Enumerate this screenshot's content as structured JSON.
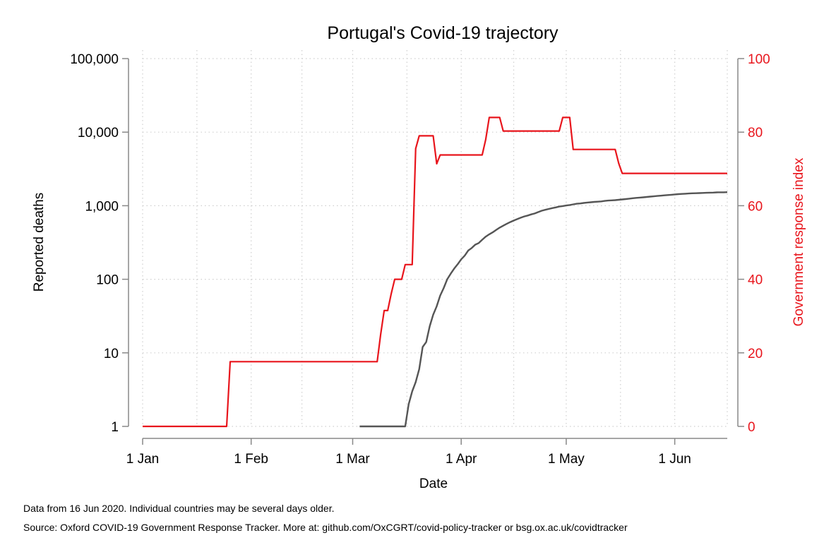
{
  "chart_data": {
    "type": "line",
    "title": "Portugal's Covid-19 trajectory",
    "xlabel": "Date",
    "ylabel": "Reported deaths",
    "ylabel_right": "Government response index",
    "x_range": [
      "2020-01-01",
      "2020-06-16"
    ],
    "x_ticks": [
      {
        "date": "2020-01-01",
        "label": "1 Jan"
      },
      {
        "date": "2020-02-01",
        "label": "1 Feb"
      },
      {
        "date": "2020-03-01",
        "label": "1 Mar"
      },
      {
        "date": "2020-04-01",
        "label": "1 Apr"
      },
      {
        "date": "2020-05-01",
        "label": "1 May"
      },
      {
        "date": "2020-06-01",
        "label": "1 Jun"
      }
    ],
    "y_left": {
      "scale": "log",
      "range": [
        1,
        100000
      ],
      "ticks": [
        {
          "value": 1,
          "label": "1"
        },
        {
          "value": 10,
          "label": "10"
        },
        {
          "value": 100,
          "label": "100"
        },
        {
          "value": 1000,
          "label": "1,000"
        },
        {
          "value": 10000,
          "label": "10,000"
        },
        {
          "value": 100000,
          "label": "100,000"
        }
      ]
    },
    "y_right": {
      "scale": "linear",
      "range": [
        0,
        100
      ],
      "ticks": [
        {
          "value": 0,
          "label": "0"
        },
        {
          "value": 20,
          "label": "20"
        },
        {
          "value": 40,
          "label": "40"
        },
        {
          "value": 60,
          "label": "60"
        },
        {
          "value": 80,
          "label": "80"
        },
        {
          "value": 100,
          "label": "100"
        }
      ]
    },
    "grid": true,
    "series": [
      {
        "axis": "right",
        "color": "#e8151c",
        "points": [
          [
            "2020-01-01",
            0
          ],
          [
            "2020-01-25",
            0
          ],
          [
            "2020-01-26",
            17.6
          ],
          [
            "2020-03-08",
            17.6
          ],
          [
            "2020-03-09",
            25
          ],
          [
            "2020-03-10",
            31.5
          ],
          [
            "2020-03-11",
            31.5
          ],
          [
            "2020-03-12",
            36
          ],
          [
            "2020-03-13",
            40
          ],
          [
            "2020-03-15",
            40
          ],
          [
            "2020-03-16",
            44
          ],
          [
            "2020-03-18",
            44
          ],
          [
            "2020-03-19",
            75.5
          ],
          [
            "2020-03-20",
            79
          ],
          [
            "2020-03-24",
            79
          ],
          [
            "2020-03-25",
            71.4
          ],
          [
            "2020-03-26",
            73.8
          ],
          [
            "2020-04-07",
            73.8
          ],
          [
            "2020-04-08",
            78
          ],
          [
            "2020-04-09",
            84
          ],
          [
            "2020-04-12",
            84
          ],
          [
            "2020-04-13",
            80.3
          ],
          [
            "2020-04-29",
            80.3
          ],
          [
            "2020-04-30",
            84
          ],
          [
            "2020-05-02",
            84
          ],
          [
            "2020-05-03",
            75.3
          ],
          [
            "2020-05-15",
            75.3
          ],
          [
            "2020-05-16",
            71.5
          ],
          [
            "2020-05-17",
            68.8
          ],
          [
            "2020-06-16",
            68.8
          ]
        ]
      },
      {
        "axis": "left",
        "color": "#555555",
        "points": [
          [
            "2020-03-03",
            1
          ],
          [
            "2020-03-16",
            1
          ],
          [
            "2020-03-17",
            2
          ],
          [
            "2020-03-18",
            3
          ],
          [
            "2020-03-19",
            4
          ],
          [
            "2020-03-20",
            6
          ],
          [
            "2020-03-21",
            12
          ],
          [
            "2020-03-22",
            14
          ],
          [
            "2020-03-23",
            23
          ],
          [
            "2020-03-24",
            33
          ],
          [
            "2020-03-25",
            43
          ],
          [
            "2020-03-26",
            60
          ],
          [
            "2020-03-27",
            76
          ],
          [
            "2020-03-28",
            100
          ],
          [
            "2020-03-29",
            119
          ],
          [
            "2020-03-30",
            140
          ],
          [
            "2020-03-31",
            160
          ],
          [
            "2020-04-01",
            187
          ],
          [
            "2020-04-02",
            209
          ],
          [
            "2020-04-03",
            246
          ],
          [
            "2020-04-04",
            266
          ],
          [
            "2020-04-05",
            295
          ],
          [
            "2020-04-06",
            311
          ],
          [
            "2020-04-07",
            345
          ],
          [
            "2020-04-08",
            380
          ],
          [
            "2020-04-09",
            409
          ],
          [
            "2020-04-10",
            435
          ],
          [
            "2020-04-11",
            470
          ],
          [
            "2020-04-12",
            504
          ],
          [
            "2020-04-13",
            535
          ],
          [
            "2020-04-14",
            567
          ],
          [
            "2020-04-15",
            599
          ],
          [
            "2020-04-16",
            629
          ],
          [
            "2020-04-17",
            657
          ],
          [
            "2020-04-18",
            687
          ],
          [
            "2020-04-19",
            714
          ],
          [
            "2020-04-20",
            735
          ],
          [
            "2020-04-21",
            762
          ],
          [
            "2020-04-22",
            785
          ],
          [
            "2020-04-23",
            820
          ],
          [
            "2020-04-24",
            854
          ],
          [
            "2020-04-25",
            880
          ],
          [
            "2020-04-26",
            903
          ],
          [
            "2020-04-27",
            928
          ],
          [
            "2020-04-28",
            948
          ],
          [
            "2020-04-29",
            973
          ],
          [
            "2020-04-30",
            989
          ],
          [
            "2020-05-01",
            1007
          ],
          [
            "2020-05-02",
            1023
          ],
          [
            "2020-05-03",
            1043
          ],
          [
            "2020-05-04",
            1063
          ],
          [
            "2020-05-05",
            1074
          ],
          [
            "2020-05-06",
            1089
          ],
          [
            "2020-05-07",
            1105
          ],
          [
            "2020-05-08",
            1114
          ],
          [
            "2020-05-09",
            1126
          ],
          [
            "2020-05-10",
            1135
          ],
          [
            "2020-05-11",
            1144
          ],
          [
            "2020-05-12",
            1163
          ],
          [
            "2020-05-13",
            1175
          ],
          [
            "2020-05-14",
            1184
          ],
          [
            "2020-05-15",
            1190
          ],
          [
            "2020-05-16",
            1203
          ],
          [
            "2020-05-17",
            1218
          ],
          [
            "2020-05-18",
            1231
          ],
          [
            "2020-05-19",
            1247
          ],
          [
            "2020-05-20",
            1263
          ],
          [
            "2020-05-21",
            1277
          ],
          [
            "2020-05-22",
            1289
          ],
          [
            "2020-05-23",
            1302
          ],
          [
            "2020-05-24",
            1316
          ],
          [
            "2020-05-25",
            1330
          ],
          [
            "2020-05-26",
            1342
          ],
          [
            "2020-05-27",
            1356
          ],
          [
            "2020-05-28",
            1369
          ],
          [
            "2020-05-29",
            1383
          ],
          [
            "2020-05-30",
            1396
          ],
          [
            "2020-05-31",
            1410
          ],
          [
            "2020-06-01",
            1424
          ],
          [
            "2020-06-02",
            1436
          ],
          [
            "2020-06-03",
            1447
          ],
          [
            "2020-06-04",
            1455
          ],
          [
            "2020-06-05",
            1465
          ],
          [
            "2020-06-06",
            1474
          ],
          [
            "2020-06-07",
            1479
          ],
          [
            "2020-06-08",
            1485
          ],
          [
            "2020-06-09",
            1492
          ],
          [
            "2020-06-10",
            1497
          ],
          [
            "2020-06-11",
            1504
          ],
          [
            "2020-06-12",
            1510
          ],
          [
            "2020-06-13",
            1517
          ],
          [
            "2020-06-14",
            1522
          ],
          [
            "2020-06-15",
            1523
          ],
          [
            "2020-06-16",
            1527
          ]
        ]
      }
    ]
  },
  "notes": {
    "line1": "Data from 16 Jun 2020. Individual countries may be several days older.",
    "line2": "Source: Oxford COVID-19 Government Response Tracker. More at: github.com/OxCGRT/covid-policy-tracker or bsg.ox.ac.uk/covidtracker"
  }
}
